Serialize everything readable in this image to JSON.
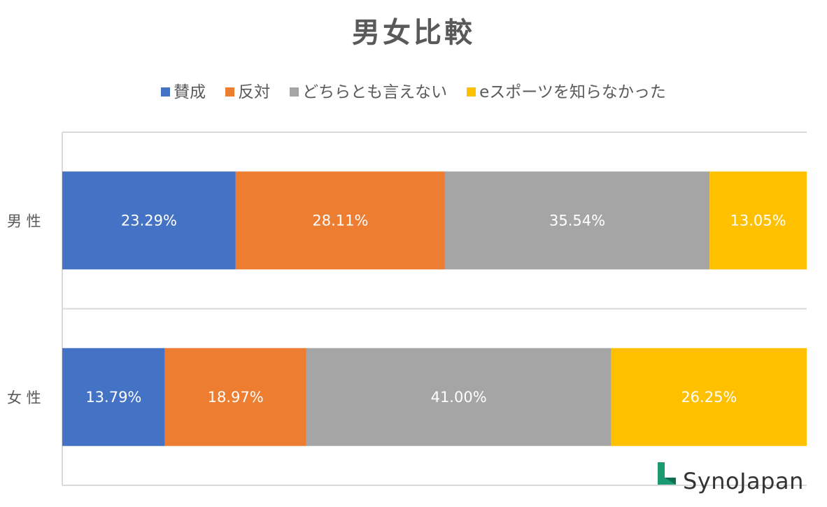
{
  "chart_data": {
    "type": "bar",
    "orientation": "horizontal",
    "stacked": "percent",
    "title": "男女比較",
    "categories": [
      "男 性",
      "女 性"
    ],
    "series": [
      {
        "name": "賛成",
        "color": "#4472C4",
        "values": [
          23.29,
          13.79
        ],
        "labels": [
          "23.29%",
          "13.79%"
        ]
      },
      {
        "name": "反対",
        "color": "#ED7D31",
        "values": [
          28.11,
          18.97
        ],
        "labels": [
          "28.11%",
          "18.97%"
        ]
      },
      {
        "name": "どちらとも言えない",
        "color": "#A5A5A5",
        "values": [
          35.54,
          41.0
        ],
        "labels": [
          "35.54%",
          "41.00%"
        ]
      },
      {
        "name": "eスポーツを知らなかった",
        "color": "#FFC000",
        "values": [
          13.05,
          26.25
        ],
        "labels": [
          "13.05%",
          "26.25%"
        ]
      }
    ],
    "xlim": [
      0,
      100
    ],
    "legend_position": "top",
    "grid": true
  },
  "logo": {
    "text": "SynoJapan",
    "color": "#1a9a72"
  }
}
